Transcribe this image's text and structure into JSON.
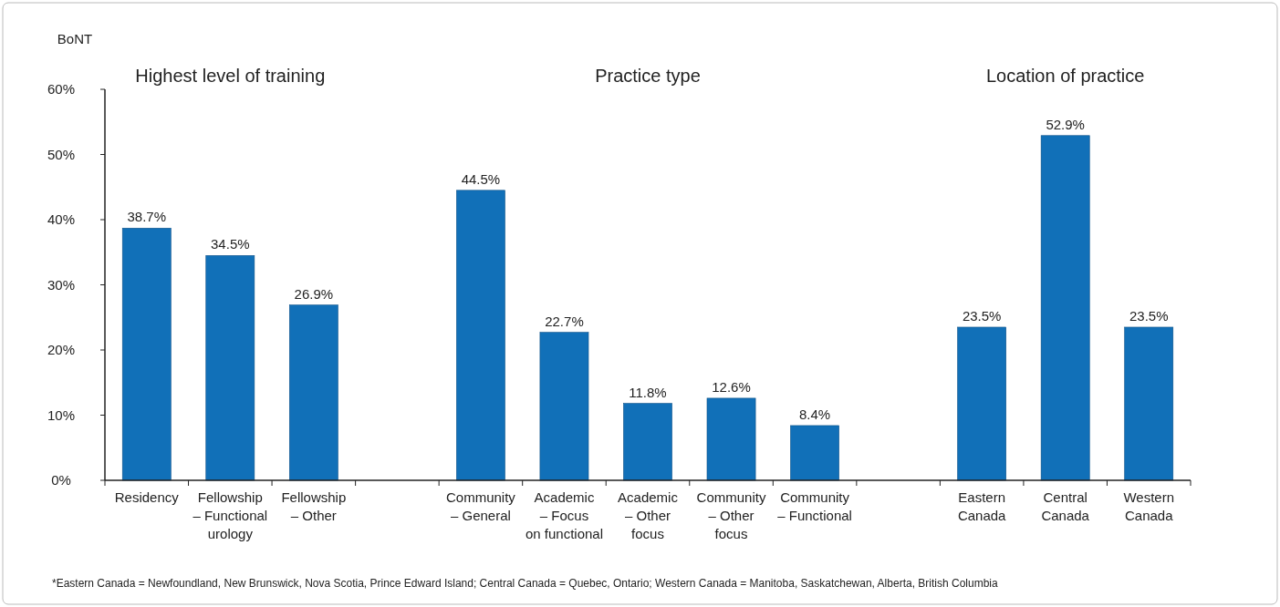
{
  "chart_data": {
    "type": "bar",
    "ylabel": "BoNT",
    "categories": [
      "Residency",
      "Fellowship\n– Functional\nurology",
      "Fellowship\n– Other",
      null,
      "Community\n– General",
      "Academic\n– Focus\non functional",
      "Academic\n– Other\nfocus",
      "Community\n– Other\nfocus",
      "Community\n– Functional",
      null,
      "Eastern\nCanada",
      "Central\nCanada",
      "Western\nCanada"
    ],
    "values": [
      38.7,
      34.5,
      26.9,
      null,
      44.5,
      22.7,
      11.8,
      12.6,
      8.4,
      null,
      23.5,
      52.9,
      23.5
    ],
    "color": "#1170b8",
    "data_labels": true,
    "value_labels": [
      "38.7%",
      "34.5%",
      "26.9%",
      null,
      "44.5%",
      "22.7%",
      "11.8%",
      "12.6%",
      "8.4%",
      null,
      "23.5%",
      "52.9%",
      "23.5%"
    ],
    "ylim": [
      0,
      60
    ],
    "yticks": [
      {
        "value": 0,
        "label": "0%"
      },
      {
        "value": 10,
        "label": "10%"
      },
      {
        "value": 20,
        "label": "20%"
      },
      {
        "value": 30,
        "label": "30%"
      },
      {
        "value": 40,
        "label": "40%"
      },
      {
        "value": 50,
        "label": "50%"
      },
      {
        "value": 60,
        "label": "60%"
      }
    ],
    "grid": false,
    "annotations": [
      "Highest level of training",
      "Practice type",
      "Location of practice",
      "*Eastern Canada = Newfoundland, New Brunswick, Nova Scotia, Prince Edward Island; Central Canada = Quebec, Ontario; Western Canada = Manitoba, Saskatchewan, Alberta, British Columbia"
    ]
  }
}
